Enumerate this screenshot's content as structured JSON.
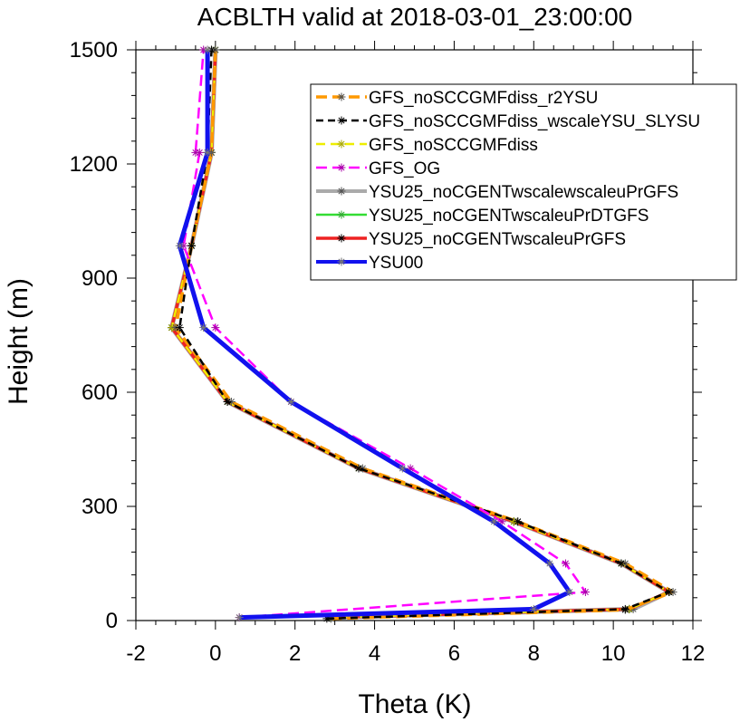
{
  "chart_data": {
    "type": "line",
    "title": "ACBLTH valid at 2018-03-01_23:00:00",
    "xlabel": "Theta (K)",
    "ylabel": "Height (m)",
    "xlim": [
      -2,
      12
    ],
    "ylim": [
      0,
      1500
    ],
    "xticks": [
      -2,
      0,
      2,
      4,
      6,
      8,
      10,
      12
    ],
    "xtick_labels": [
      "-2",
      "0",
      "2",
      "4",
      "6",
      "8",
      "10",
      "12"
    ],
    "yticks": [
      0,
      300,
      600,
      900,
      1200,
      1500
    ],
    "ytick_labels": [
      "0",
      "300",
      "600",
      "900",
      "1200",
      "1500"
    ],
    "grid": false,
    "legend_position": "top-right",
    "series": [
      {
        "name": "YSU25_noCGENTwscalewscaleuPrGFS",
        "color": "#aaaaaa",
        "width": 5,
        "dash": "",
        "marker_color": "#555555",
        "x": [
          2.9,
          10.5,
          11.4,
          10.2,
          7.5,
          3.6,
          0.3,
          -1.1,
          -0.6,
          -0.1,
          0.0
        ],
        "y": [
          8,
          30,
          75,
          150,
          260,
          400,
          575,
          770,
          985,
          1230,
          1500
        ]
      },
      {
        "name": "YSU25_noCGENTwscaleuPrDTGFS",
        "color": "#33dd33",
        "width": 2.5,
        "dash": "",
        "marker_color": "#33aa33",
        "x": [
          2.9,
          10.4,
          11.4,
          10.2,
          7.5,
          3.6,
          0.3,
          -1.1,
          -0.6,
          -0.1,
          0.0
        ],
        "y": [
          8,
          30,
          75,
          150,
          260,
          400,
          575,
          770,
          985,
          1230,
          1500
        ]
      },
      {
        "name": "YSU25_noCGENTwscaleuPrGFS",
        "color": "#ee2222",
        "width": 3.5,
        "dash": "",
        "marker_color": "#000000",
        "x": [
          2.9,
          10.4,
          11.4,
          10.2,
          7.5,
          3.6,
          0.3,
          -1.1,
          -0.6,
          -0.1,
          0.0
        ],
        "y": [
          8,
          30,
          75,
          150,
          260,
          400,
          575,
          770,
          985,
          1230,
          1500
        ]
      },
      {
        "name": "GFS_noSCCGMFdiss",
        "color": "#eeee00",
        "width": 2.5,
        "dash": "10,6",
        "marker_color": "#aaaa00",
        "x": [
          2.9,
          10.4,
          11.4,
          10.2,
          7.5,
          3.6,
          0.3,
          -1.1,
          -0.6,
          -0.1,
          0.0
        ],
        "y": [
          8,
          30,
          75,
          150,
          260,
          400,
          575,
          770,
          985,
          1230,
          1500
        ]
      },
      {
        "name": "GFS_noSCCGMFdiss_r2YSU",
        "color": "#ff9900",
        "width": 3.5,
        "dash": "12,6",
        "marker_color": "#555555",
        "x": [
          2.9,
          10.3,
          11.5,
          10.3,
          7.6,
          3.7,
          0.4,
          -1.0,
          -0.6,
          -0.1,
          0.0
        ],
        "y": [
          5,
          28,
          75,
          150,
          260,
          400,
          575,
          770,
          985,
          1230,
          1500
        ]
      },
      {
        "name": "GFS_noSCCGMFdiss_wscaleYSU_SLYSU",
        "color": "#000000",
        "width": 2.5,
        "dash": "8,5",
        "marker_color": "#000000",
        "x": [
          2.8,
          10.3,
          11.4,
          10.2,
          7.6,
          3.6,
          0.3,
          -0.9,
          -0.6,
          -0.2,
          -0.1
        ],
        "y": [
          5,
          30,
          75,
          150,
          260,
          400,
          575,
          770,
          985,
          1230,
          1500
        ]
      },
      {
        "name": "GFS_OG",
        "color": "#ff00ff",
        "width": 2.5,
        "dash": "12,6",
        "marker_color": "#aa00aa",
        "x": [
          0.6,
          9.3,
          8.8,
          7.2,
          4.9,
          1.9,
          0.0,
          -0.8,
          -0.4,
          -0.5,
          -0.3
        ],
        "y": [
          8,
          75,
          150,
          260,
          400,
          575,
          770,
          985,
          1230,
          1230,
          1500
        ]
      },
      {
        "name": "YSU00",
        "color": "#1111ee",
        "width": 5,
        "dash": "",
        "marker_color": "#777777",
        "x": [
          0.6,
          8.0,
          8.9,
          8.4,
          7.0,
          4.7,
          1.9,
          -0.3,
          -0.9,
          -0.2,
          -0.2
        ],
        "y": [
          8,
          30,
          75,
          150,
          260,
          400,
          575,
          770,
          985,
          1230,
          1500
        ]
      }
    ],
    "legend_order": [
      "GFS_noSCCGMFdiss_r2YSU",
      "GFS_noSCCGMFdiss_wscaleYSU_SLYSU",
      "GFS_noSCCGMFdiss",
      "GFS_OG",
      "YSU25_noCGENTwscalewscaleuPrGFS",
      "YSU25_noCGENTwscaleuPrDTGFS",
      "YSU25_noCGENTwscaleuPrGFS",
      "YSU00"
    ]
  }
}
